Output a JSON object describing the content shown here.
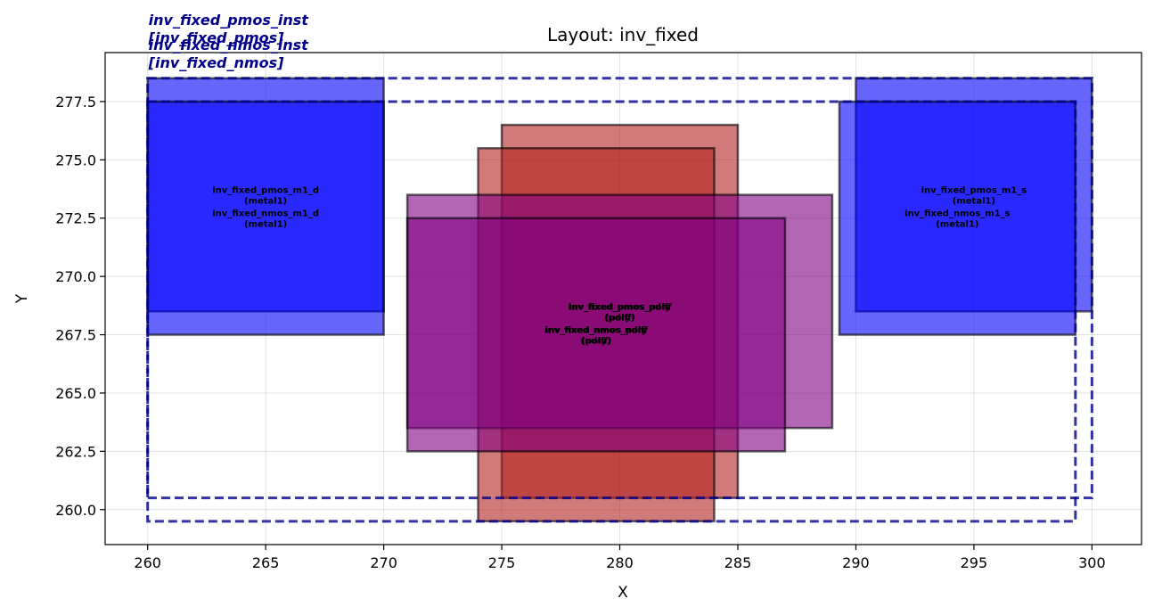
{
  "chart_data": {
    "type": "layout",
    "title": "Layout: inv_fixed",
    "xlabel": "X",
    "ylabel": "Y",
    "xlim": [
      258.2,
      302.1
    ],
    "ylim": [
      258.5,
      279.6
    ],
    "xticks": [
      260,
      265,
      270,
      275,
      280,
      285,
      290,
      295,
      300
    ],
    "yticks": [
      260.0,
      262.5,
      265.0,
      267.5,
      270.0,
      272.5,
      275.0,
      277.5
    ],
    "grid": true,
    "instances": [
      {
        "label": "inv_fixed_pmos_inst\n[inv_fixed_pmos]",
        "x0": 260,
        "y0": 260.5,
        "x1": 300,
        "y1": 278.5,
        "color": "#00008b"
      },
      {
        "label": "inv_fixed_nmos_inst\n[inv_fixed_nmos]",
        "x0": 260,
        "y0": 259.5,
        "x1": 299.3,
        "y1": 277.5,
        "color": "#00008b"
      }
    ],
    "shapes": [
      {
        "name": "inv_fixed_pmos_m1_d",
        "layer": "metal1",
        "x0": 260,
        "y0": 268.5,
        "x1": 270,
        "y1": 278.5,
        "color": "#0000ff"
      },
      {
        "name": "inv_fixed_nmos_m1_d",
        "layer": "metal1",
        "x0": 260,
        "y0": 267.5,
        "x1": 270,
        "y1": 277.5,
        "color": "#0000ff"
      },
      {
        "name": "inv_fixed_pmos_m1_s",
        "layer": "metal1",
        "x0": 290,
        "y0": 268.5,
        "x1": 300,
        "y1": 278.5,
        "color": "#0000ff"
      },
      {
        "name": "inv_fixed_nmos_m1_s",
        "layer": "metal1",
        "x0": 289.3,
        "y0": 267.5,
        "x1": 299.3,
        "y1": 277.5,
        "color": "#0000ff"
      },
      {
        "name": "inv_fixed_pmos_poly",
        "layer": "poly",
        "x0": 275,
        "y0": 260.5,
        "x1": 285,
        "y1": 276.5,
        "color": "#b22222"
      },
      {
        "name": "inv_fixed_nmos_poly",
        "layer": "poly",
        "x0": 274,
        "y0": 259.5,
        "x1": 284,
        "y1": 275.5,
        "color": "#b22222"
      },
      {
        "name": "inv_fixed_pmos_pdiff",
        "layer": "pdiff",
        "x0": 271,
        "y0": 263.5,
        "x1": 289,
        "y1": 273.5,
        "color": "#800080"
      },
      {
        "name": "inv_fixed_nmos_ndiff",
        "layer": "ndiff",
        "x0": 271,
        "y0": 262.5,
        "x1": 287,
        "y1": 272.5,
        "color": "#800080"
      }
    ],
    "shape_labels": [
      {
        "lines": [
          "inv_fixed_pmos_m1_d",
          "(metal1)"
        ],
        "x": 265.0,
        "y": 273.5
      },
      {
        "lines": [
          "inv_fixed_nmos_m1_d",
          "(metal1)"
        ],
        "x": 265.0,
        "y": 272.5
      },
      {
        "lines": [
          "inv_fixed_pmos_m1_s",
          "(metal1)"
        ],
        "x": 295.0,
        "y": 273.5
      },
      {
        "lines": [
          "inv_fixed_nmos_m1_s",
          "(metal1)"
        ],
        "x": 294.3,
        "y": 272.5
      },
      {
        "lines": [
          "inv_fixed_pmos_poly",
          "(poly)"
        ],
        "x": 280.0,
        "y": 268.5
      },
      {
        "lines": [
          "inv_fixed_nmos_poly",
          "(poly)"
        ],
        "x": 279.0,
        "y": 267.5
      },
      {
        "lines": [
          "inv_fixed_pmos_pdiff",
          "(pdiff)"
        ],
        "x": 280.0,
        "y": 268.5
      },
      {
        "lines": [
          "inv_fixed_nmos_ndiff",
          "(ndiff)"
        ],
        "x": 279.0,
        "y": 267.5
      }
    ]
  }
}
